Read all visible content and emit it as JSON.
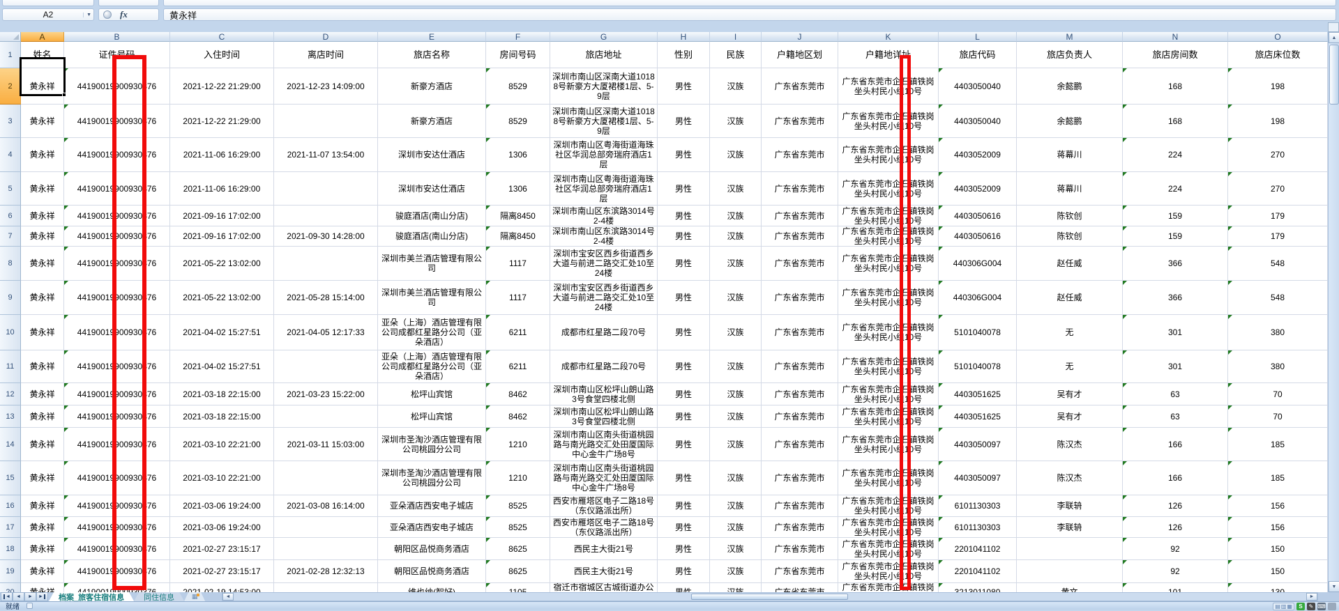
{
  "formula_bar": {
    "cell_ref": "A2",
    "fx_label": "fx",
    "value": "黄永祥"
  },
  "icons": {
    "dropdown": "▼",
    "scroll_up": "▲",
    "scroll_down": "▼",
    "scroll_left": "◄",
    "scroll_right": "►",
    "nav_first": "◄",
    "nav_prev": "◄",
    "nav_next": "►",
    "nav_last": "►",
    "insert_sheet": "▦",
    "view_normal": "▤",
    "view_layout": "▥",
    "view_break": "▦",
    "sogou_s": "S",
    "pen": "✎",
    "keyboard": "⌨"
  },
  "sheet": {
    "column_letters": [
      "A",
      "B",
      "C",
      "D",
      "E",
      "F",
      "G",
      "H",
      "I",
      "J",
      "K",
      "L",
      "M",
      "N",
      "O"
    ],
    "header_row": [
      "姓名",
      "证件号码",
      "入住时间",
      "离店时间",
      "旅店名称",
      "房间号码",
      "旅店地址",
      "性别",
      "民族",
      "户籍地区划",
      "户籍地详址",
      "旅店代码",
      "旅店负责人",
      "旅店房间数",
      "旅店床位数"
    ],
    "rows": [
      {
        "num": 2,
        "cells": [
          "黄永祥",
          "44190019900930376",
          "2021-12-22 21:29:00",
          "2021-12-23 14:09:00",
          "新豪方酒店",
          "8529",
          "深圳市南山区深南大道10188号新豪方大厦裙楼1层、5-9层",
          "男性",
          "汉族",
          "广东省东莞市",
          "广东省东莞市企石镇铁岗坐头村民小组10号",
          "4403050040",
          "余懿鹏",
          "168",
          "198"
        ]
      },
      {
        "num": 3,
        "cells": [
          "黄永祥",
          "44190019900930376",
          "2021-12-22 21:29:00",
          "",
          "新豪方酒店",
          "8529",
          "深圳市南山区深南大道10188号新豪方大厦裙楼1层、5-9层",
          "男性",
          "汉族",
          "广东省东莞市",
          "广东省东莞市企石镇铁岗坐头村民小组10号",
          "4403050040",
          "余懿鹏",
          "168",
          "198"
        ]
      },
      {
        "num": 4,
        "cells": [
          "黄永祥",
          "44190019900930376",
          "2021-11-06 16:29:00",
          "2021-11-07 13:54:00",
          "深圳市安达仕酒店",
          "1306",
          "深圳市南山区粤海街道海珠社区华润总部旁瑞府酒店1层",
          "男性",
          "汉族",
          "广东省东莞市",
          "广东省东莞市企石镇铁岗坐头村民小组10号",
          "4403052009",
          "蒋幕川",
          "224",
          "270"
        ]
      },
      {
        "num": 5,
        "cells": [
          "黄永祥",
          "44190019900930376",
          "2021-11-06 16:29:00",
          "",
          "深圳市安达仕酒店",
          "1306",
          "深圳市南山区粤海街道海珠社区华润总部旁瑞府酒店1层",
          "男性",
          "汉族",
          "广东省东莞市",
          "广东省东莞市企石镇铁岗坐头村民小组10号",
          "4403052009",
          "蒋幕川",
          "224",
          "270"
        ]
      },
      {
        "num": 6,
        "cells": [
          "黄永祥",
          "44190019900930376",
          "2021-09-16 17:02:00",
          "",
          "骏庭酒店(南山分店)",
          "隔离8450",
          "深圳市南山区东滨路3014号2-4楼",
          "男性",
          "汉族",
          "广东省东莞市",
          "广东省东莞市企石镇铁岗坐头村民小组10号",
          "4403050616",
          "陈钦创",
          "159",
          "179"
        ]
      },
      {
        "num": 7,
        "cells": [
          "黄永祥",
          "44190019900930376",
          "2021-09-16 17:02:00",
          "2021-09-30 14:28:00",
          "骏庭酒店(南山分店)",
          "隔离8450",
          "深圳市南山区东滨路3014号2-4楼",
          "男性",
          "汉族",
          "广东省东莞市",
          "广东省东莞市企石镇铁岗坐头村民小组10号",
          "4403050616",
          "陈钦创",
          "159",
          "179"
        ]
      },
      {
        "num": 8,
        "cells": [
          "黄永祥",
          "44190019900930376",
          "2021-05-22 13:02:00",
          "",
          "深圳市美兰酒店管理有限公司",
          "1117",
          "深圳市宝安区西乡街道西乡大道与前进二路交汇处10至24楼",
          "男性",
          "汉族",
          "广东省东莞市",
          "广东省东莞市企石镇铁岗坐头村民小组10号",
          "440306G004",
          "赵任威",
          "366",
          "548"
        ]
      },
      {
        "num": 9,
        "cells": [
          "黄永祥",
          "44190019900930376",
          "2021-05-22 13:02:00",
          "2021-05-28 15:14:00",
          "深圳市美兰酒店管理有限公司",
          "1117",
          "深圳市宝安区西乡街道西乡大道与前进二路交汇处10至24楼",
          "男性",
          "汉族",
          "广东省东莞市",
          "广东省东莞市企石镇铁岗坐头村民小组10号",
          "440306G004",
          "赵任威",
          "366",
          "548"
        ]
      },
      {
        "num": 10,
        "cells": [
          "黄永祥",
          "44190019900930376",
          "2021-04-02 15:27:51",
          "2021-04-05 12:17:33",
          "亚朵（上海）酒店管理有限公司成都红星路分公司（亚朵酒店）",
          "6211",
          "成都市红星路二段70号",
          "男性",
          "汉族",
          "广东省东莞市",
          "广东省东莞市企石镇铁岗坐头村民小组10号",
          "5101040078",
          "无",
          "301",
          "380"
        ]
      },
      {
        "num": 11,
        "cells": [
          "黄永祥",
          "44190019900930376",
          "2021-04-02 15:27:51",
          "",
          "亚朵（上海）酒店管理有限公司成都红星路分公司（亚朵酒店）",
          "6211",
          "成都市红星路二段70号",
          "男性",
          "汉族",
          "广东省东莞市",
          "广东省东莞市企石镇铁岗坐头村民小组10号",
          "5101040078",
          "无",
          "301",
          "380"
        ]
      },
      {
        "num": 12,
        "cells": [
          "黄永祥",
          "44190019900930376",
          "2021-03-18 22:15:00",
          "2021-03-23 15:22:00",
          "松坪山宾馆",
          "8462",
          "深圳市南山区松坪山朗山路3号食堂四楼北侧",
          "男性",
          "汉族",
          "广东省东莞市",
          "广东省东莞市企石镇铁岗坐头村民小组10号",
          "4403051625",
          "吴有才",
          "63",
          "70"
        ]
      },
      {
        "num": 13,
        "cells": [
          "黄永祥",
          "44190019900930376",
          "2021-03-18 22:15:00",
          "",
          "松坪山宾馆",
          "8462",
          "深圳市南山区松坪山朗山路3号食堂四楼北侧",
          "男性",
          "汉族",
          "广东省东莞市",
          "广东省东莞市企石镇铁岗坐头村民小组10号",
          "4403051625",
          "吴有才",
          "63",
          "70"
        ]
      },
      {
        "num": 14,
        "cells": [
          "黄永祥",
          "44190019900930376",
          "2021-03-10 22:21:00",
          "2021-03-11 15:03:00",
          "深圳市圣淘沙酒店管理有限公司桃园分公司",
          "1210",
          "深圳市南山区南头街道桃园路与南光路交汇处田厦国际中心金牛广场8号",
          "男性",
          "汉族",
          "广东省东莞市",
          "广东省东莞市企石镇铁岗坐头村民小组10号",
          "4403050097",
          "陈汉杰",
          "166",
          "185"
        ]
      },
      {
        "num": 15,
        "cells": [
          "黄永祥",
          "44190019900930376",
          "2021-03-10 22:21:00",
          "",
          "深圳市圣淘沙酒店管理有限公司桃园分公司",
          "1210",
          "深圳市南山区南头街道桃园路与南光路交汇处田厦国际中心金牛广场8号",
          "男性",
          "汉族",
          "广东省东莞市",
          "广东省东莞市企石镇铁岗坐头村民小组10号",
          "4403050097",
          "陈汉杰",
          "166",
          "185"
        ]
      },
      {
        "num": 16,
        "cells": [
          "黄永祥",
          "44190019900930376",
          "2021-03-06 19:24:00",
          "2021-03-08 16:14:00",
          "亚朵酒店西安电子城店",
          "8525",
          "西安市雁塔区电子二路18号（东仪路派出所）",
          "男性",
          "汉族",
          "广东省东莞市",
          "广东省东莞市企石镇铁岗坐头村民小组10号",
          "6101130303",
          "李联辀",
          "126",
          "156"
        ]
      },
      {
        "num": 17,
        "cells": [
          "黄永祥",
          "44190019900930376",
          "2021-03-06 19:24:00",
          "",
          "亚朵酒店西安电子城店",
          "8525",
          "西安市雁塔区电子二路18号（东仪路派出所）",
          "男性",
          "汉族",
          "广东省东莞市",
          "广东省东莞市企石镇铁岗坐头村民小组10号",
          "6101130303",
          "李联辀",
          "126",
          "156"
        ]
      },
      {
        "num": 18,
        "cells": [
          "黄永祥",
          "44190019900930376",
          "2021-02-27 23:15:17",
          "",
          "朝阳区品悦商务酒店",
          "8625",
          "西民主大街21号",
          "男性",
          "汉族",
          "广东省东莞市",
          "广东省东莞市企石镇铁岗坐头村民小组10号",
          "2201041102",
          "",
          "92",
          "150"
        ]
      },
      {
        "num": 19,
        "cells": [
          "黄永祥",
          "44190019900930376",
          "2021-02-27 23:15:17",
          "2021-02-28 12:32:13",
          "朝阳区品悦商务酒店",
          "8625",
          "西民主大街21号",
          "男性",
          "汉族",
          "广东省东莞市",
          "广东省东莞市企石镇铁岗坐头村民小组10号",
          "2201041102",
          "",
          "92",
          "150"
        ]
      },
      {
        "num": 20,
        "cells": [
          "黄永祥",
          "44190019900930376",
          "2021-02-19 14:53:00",
          "",
          "维也纳(智好)",
          "1105",
          "宿迁市宿城区古城街道办公大楼（地上北一层，地",
          "男性",
          "汉族",
          "广东省东莞市",
          "广东省东莞市企石镇铁岗坐头村民小组10号",
          "3213011080",
          "黄文",
          "101",
          "130"
        ]
      }
    ]
  },
  "sheet_tabs": {
    "items": [
      {
        "label": "档案_旅客住宿信息",
        "active": true
      },
      {
        "label": "同住信息",
        "active": false
      }
    ]
  },
  "status": {
    "ready_label": "就绪"
  },
  "annotations": {
    "highlight_color": "#F10B0B"
  }
}
